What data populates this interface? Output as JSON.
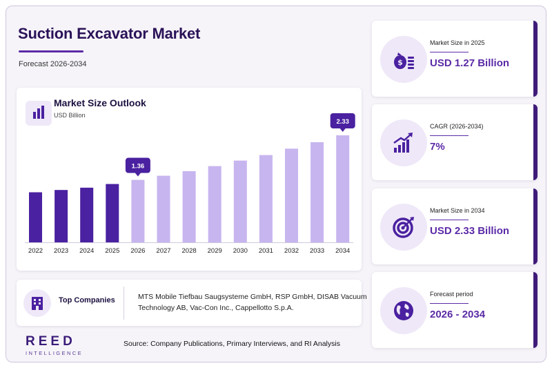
{
  "header": {
    "title": "Suction Excavator Market",
    "subtitle": "Forecast 2026-2034"
  },
  "chart_card": {
    "title": "Market Size Outlook",
    "unit": "USD Billion",
    "icon": "bar-chart-icon"
  },
  "chart_data": {
    "type": "bar",
    "title": "Market Size Outlook",
    "ylabel": "USD Billion",
    "categories": [
      "2022",
      "2023",
      "2024",
      "2025",
      "2026",
      "2027",
      "2028",
      "2029",
      "2030",
      "2031",
      "2032",
      "2033",
      "2034"
    ],
    "values": [
      1.09,
      1.14,
      1.19,
      1.27,
      1.36,
      1.45,
      1.55,
      1.66,
      1.78,
      1.9,
      2.04,
      2.18,
      2.33
    ],
    "callouts": [
      {
        "category": "2026",
        "label": "1.36"
      },
      {
        "category": "2034",
        "label": "2.33"
      }
    ],
    "historical_until": "2025",
    "ylim": [
      0,
      2.33
    ],
    "grid": false,
    "colors": {
      "historical": "#4a21a0",
      "forecast": "#c7b5ef",
      "callout": "#4a21a0"
    }
  },
  "companies": {
    "label": "Top Companies",
    "text": "MTS Mobile Tiefbau Saugsysteme GmbH, RSP GmbH, DISAB Vacuum Technology AB, Vac-Con Inc., Cappellotto S.p.A.",
    "icon": "building-icon"
  },
  "stats": [
    {
      "label": "Market Size in 2025",
      "value": "USD 1.27 Billion",
      "icon": "money-bag-icon"
    },
    {
      "label": "CAGR (2026-2034)",
      "value": "7%",
      "icon": "growth-chart-icon"
    },
    {
      "label": "Market Size in 2034",
      "value": "USD 2.33 Billion",
      "icon": "target-icon"
    },
    {
      "label": "Forecast period",
      "value": "2026 - 2034",
      "icon": "globe-icon"
    }
  ],
  "footer": {
    "logo_main": "REED",
    "logo_sub": "INTELLIGENCE",
    "source": "Source: Company Publications, Primary Interviews, and RI Analysis"
  },
  "colors": {
    "accent": "#5b2aa6",
    "dark": "#3f1a78",
    "title": "#2a1258"
  }
}
